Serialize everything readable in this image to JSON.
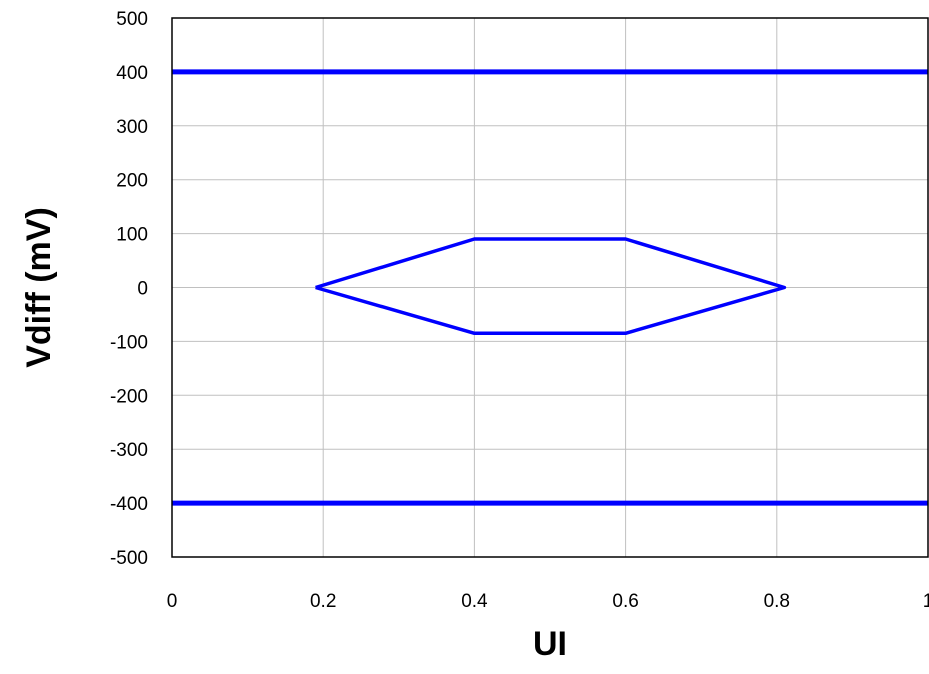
{
  "chart_data": {
    "type": "line",
    "title": "",
    "xlabel": "UI",
    "ylabel": "Vdiff (mV)",
    "xlim": [
      0,
      1
    ],
    "ylim": [
      -500,
      500
    ],
    "grid": true,
    "legend": "none",
    "x_ticks": [
      "0",
      "0.2",
      "0.4",
      "0.6",
      "0.8",
      "1"
    ],
    "y_ticks": [
      "500",
      "400",
      "300",
      "200",
      "100",
      "0",
      "-100",
      "-200",
      "-300",
      "-400",
      "-500"
    ],
    "series": [
      {
        "x": [
          0,
          1
        ],
        "y": [
          400,
          400
        ],
        "color": "#0000ff"
      },
      {
        "x": [
          0,
          1
        ],
        "y": [
          -400,
          -400
        ],
        "color": "#0000ff"
      },
      {
        "x": [
          0.19,
          0.4,
          0.6,
          0.81,
          0.6,
          0.4,
          0.19
        ],
        "y": [
          0,
          90,
          90,
          0,
          -85,
          -85,
          0
        ],
        "color": "#0000ff"
      }
    ]
  }
}
